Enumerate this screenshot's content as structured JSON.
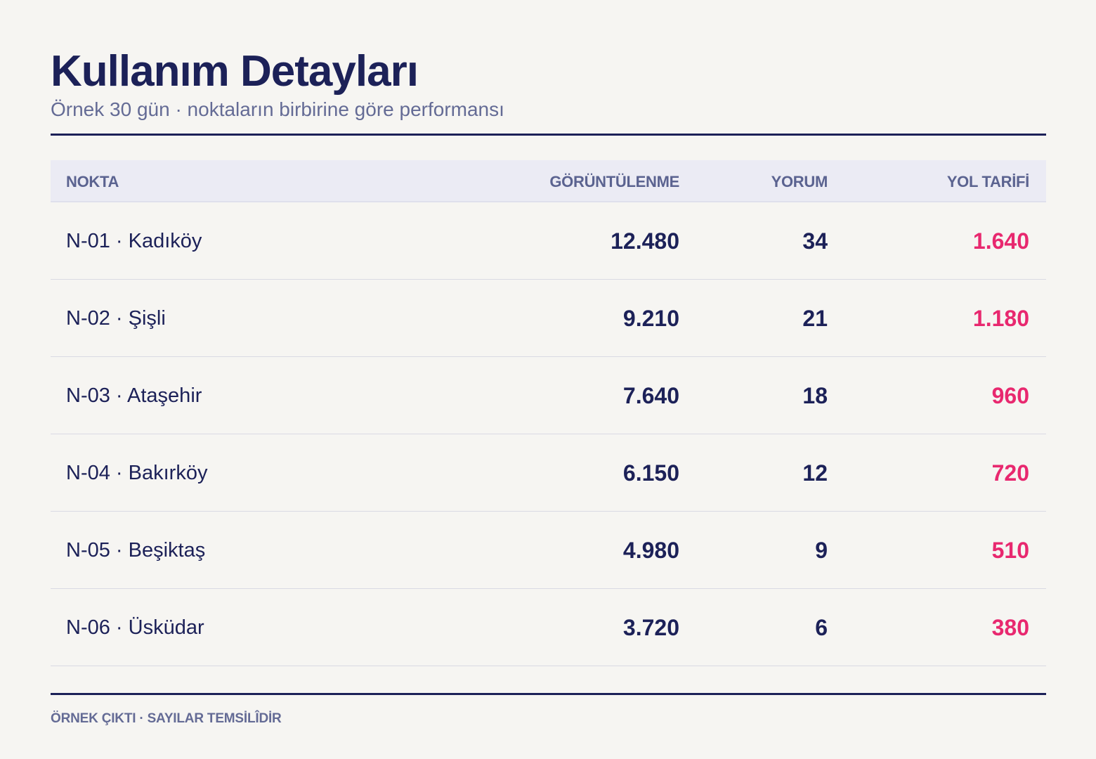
{
  "header": {
    "title": "Kullanım Detayları",
    "subtitle": "Örnek 30 gün · noktaların birbirine göre performansı"
  },
  "table": {
    "columns": [
      "NOKTA",
      "GÖRÜNTÜLENME",
      "YORUM",
      "YOL TARİFİ"
    ],
    "rows": [
      {
        "name": "N-01 · Kadıköy",
        "views": "12.480",
        "comments": "34",
        "directions": "1.640"
      },
      {
        "name": "N-02 · Şişli",
        "views": "9.210",
        "comments": "21",
        "directions": "1.180"
      },
      {
        "name": "N-03 · Ataşehir",
        "views": "7.640",
        "comments": "18",
        "directions": "960"
      },
      {
        "name": "N-04 · Bakırköy",
        "views": "6.150",
        "comments": "12",
        "directions": "720"
      },
      {
        "name": "N-05 · Beşiktaş",
        "views": "4.980",
        "comments": "9",
        "directions": "510"
      },
      {
        "name": "N-06 · Üsküdar",
        "views": "3.720",
        "comments": "6",
        "directions": "380"
      }
    ]
  },
  "footer": {
    "note": "ÖRNEK ÇIKTI · SAYILAR TEMSİLÎDİR"
  },
  "colors": {
    "text": "#1c2158",
    "muted": "#646b95",
    "accent": "#e8286f",
    "background": "#f6f5f2",
    "header_row": "#ebebf4"
  }
}
